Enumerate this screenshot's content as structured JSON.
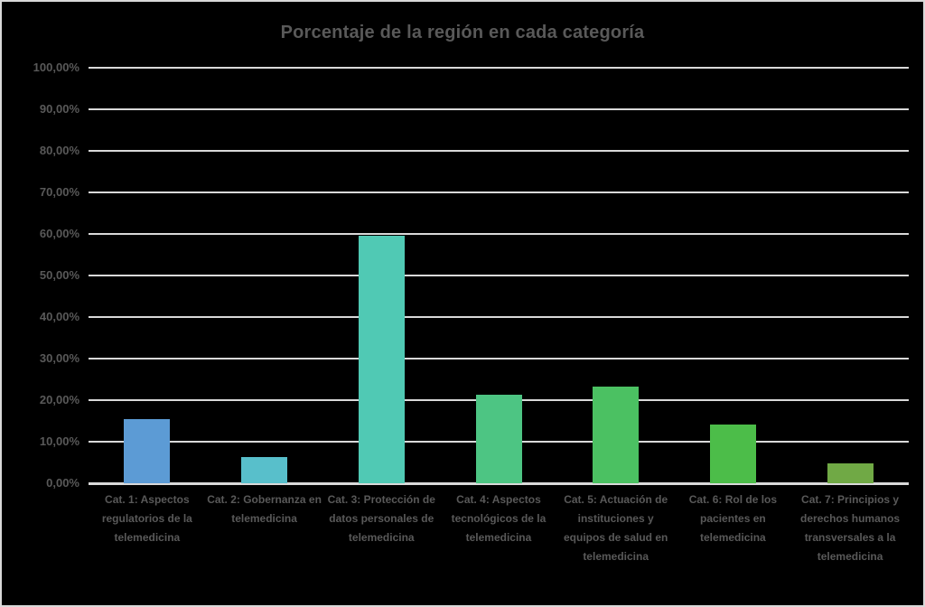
{
  "title": "Porcentaje de la región en cada categoría",
  "colors": {
    "background": "#000000",
    "canvas_border": "#D9D9D9",
    "gridline": "#D9D9D9",
    "text": "#595959"
  },
  "chart_data": {
    "type": "bar",
    "title": "Porcentaje de la región en cada categoría",
    "xlabel": "",
    "ylabel": "",
    "ylim": [
      0,
      100
    ],
    "grid": true,
    "legend": false,
    "yticks": [
      "100,00%",
      "90,00%",
      "80,00%",
      "70,00%",
      "60,00%",
      "50,00%",
      "40,00%",
      "30,00%",
      "20,00%",
      "10,00%",
      "0,00%"
    ],
    "ytick_values": [
      100,
      90,
      80,
      70,
      60,
      50,
      40,
      30,
      20,
      10,
      0
    ],
    "categories": [
      "Cat. 1: Aspectos regulatorios de la telemedicina",
      "Cat. 2: Gobernanza en telemedicina",
      "Cat. 3: Protección de datos personales de telemedicina",
      "Cat. 4: Aspectos tecnológicos de la telemedicina",
      "Cat. 5: Actuación de instituciones y equipos de salud en telemedicina",
      "Cat. 6: Rol de los pacientes en telemedicina",
      "Cat. 7: Principios y derechos humanos transversales a la telemedicina"
    ],
    "values": [
      15.4,
      6.3,
      59.5,
      21.3,
      23.2,
      14.1,
      4.8
    ],
    "bar_colors": [
      "#5C9BD5",
      "#58BFCB",
      "#50C9B4",
      "#4DC583",
      "#4BC162",
      "#4CBD49",
      "#70A945"
    ]
  }
}
